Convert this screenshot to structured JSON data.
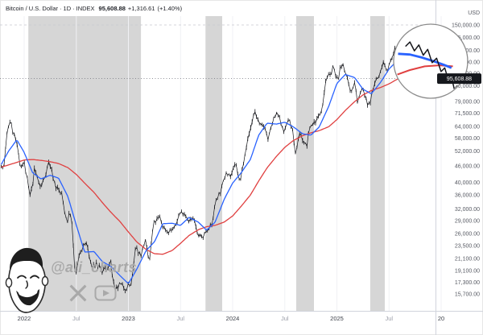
{
  "header": {
    "symbol": "Bitcoin / U.S. Dollar",
    "sep": "·",
    "interval": "1D",
    "exchange": "INDEX",
    "price": "95,608.88",
    "change": "+1,316.61",
    "change_pct": "(+1.40%)"
  },
  "axis": {
    "currency_label": "USD",
    "y_labels": [
      {
        "value": 150000,
        "label": "150,000.00"
      },
      {
        "value": 135000,
        "label": "135,000.00"
      },
      {
        "value": 121000,
        "label": "121,000.00"
      },
      {
        "value": 110000,
        "label": "110,000.00"
      },
      {
        "value": 100000,
        "label": "100,000.00"
      },
      {
        "value": 90000,
        "label": "90,000.00"
      },
      {
        "value": 79000,
        "label": "79,000.00"
      },
      {
        "value": 71500,
        "label": "71,500.00"
      },
      {
        "value": 64000,
        "label": "64,000.00"
      },
      {
        "value": 58000,
        "label": "58,000.00"
      },
      {
        "value": 52000,
        "label": "52,000.00"
      },
      {
        "value": 46000,
        "label": "46,000.00"
      },
      {
        "value": 40000,
        "label": "40,000.00"
      },
      {
        "value": 36000,
        "label": "36,000.00"
      },
      {
        "value": 32000,
        "label": "32,000.00"
      },
      {
        "value": 29000,
        "label": "29,000.00"
      },
      {
        "value": 26000,
        "label": "26,000.00"
      },
      {
        "value": 23500,
        "label": "23,500.00"
      },
      {
        "value": 21100,
        "label": "21,100.00"
      },
      {
        "value": 19100,
        "label": "19,100.00"
      },
      {
        "value": 17300,
        "label": "17,300.00"
      },
      {
        "value": 15700,
        "label": "15,700.00"
      }
    ],
    "x_labels": [
      {
        "t": 2022.0,
        "label": "2022",
        "major": true
      },
      {
        "t": 2022.5,
        "label": "Jul",
        "major": false
      },
      {
        "t": 2023.0,
        "label": "2023",
        "major": true
      },
      {
        "t": 2023.5,
        "label": "Jul",
        "major": false
      },
      {
        "t": 2024.0,
        "label": "2024",
        "major": true
      },
      {
        "t": 2024.5,
        "label": "Jul",
        "major": false
      },
      {
        "t": 2025.0,
        "label": "2025",
        "major": true
      },
      {
        "t": 2025.5,
        "label": "Jul",
        "major": false
      },
      {
        "t": 2026.0,
        "label": "20",
        "major": true
      }
    ]
  },
  "colors": {
    "ma_fast": "#2962ff",
    "ma_slow": "#e04040",
    "price": "#15161b",
    "band": "#9e9e9e",
    "axis_text": "#575a63",
    "axis_text_minor": "#9b9ea8",
    "axis_text_major": "#3f434c",
    "badge_bg": "#16181d",
    "badge_text": "#ffffff",
    "grid": "#f0f1f4",
    "watermark": "#a9a9a9"
  },
  "watermark": {
    "handle": "@ali_charts",
    "icons": [
      "cartoon-face",
      "x-logo",
      "youtube-logo"
    ]
  },
  "chart_data": {
    "type": "candlestick",
    "title": "Bitcoin / U.S. Dollar · 1D · INDEX",
    "ylabel": "USD",
    "y_scale": "log",
    "x_domain": [
      2021.78,
      2025.95
    ],
    "y_domain": [
      14000,
      156000
    ],
    "last_price": 95608.88,
    "legend": [
      {
        "name": "BTCUSD close",
        "color": "#15161b"
      },
      {
        "name": "fast moving average",
        "color": "#2962ff"
      },
      {
        "name": "slow moving average",
        "color": "#e04040"
      }
    ],
    "highlighted_periods": [
      [
        2022.04,
        2023.12
      ],
      [
        2023.74,
        2023.9
      ],
      [
        2024.61,
        2024.78
      ],
      [
        2025.32,
        2025.46
      ]
    ],
    "price": [
      [
        2021.78,
        47500
      ],
      [
        2021.8,
        43500
      ],
      [
        2021.84,
        62000
      ],
      [
        2021.86,
        67500
      ],
      [
        2021.92,
        57000
      ],
      [
        2021.96,
        46500
      ],
      [
        2022.0,
        47100
      ],
      [
        2022.06,
        35000
      ],
      [
        2022.1,
        44500
      ],
      [
        2022.16,
        38000
      ],
      [
        2022.24,
        47800
      ],
      [
        2022.3,
        39000
      ],
      [
        2022.36,
        36000
      ],
      [
        2022.41,
        28800
      ],
      [
        2022.45,
        31400
      ],
      [
        2022.49,
        17900
      ],
      [
        2022.54,
        22500
      ],
      [
        2022.6,
        24200
      ],
      [
        2022.64,
        19800
      ],
      [
        2022.7,
        20200
      ],
      [
        2022.74,
        18800
      ],
      [
        2022.79,
        19500
      ],
      [
        2022.83,
        20400
      ],
      [
        2022.87,
        15800
      ],
      [
        2022.91,
        16900
      ],
      [
        2022.97,
        16600
      ],
      [
        2023.03,
        17000
      ],
      [
        2023.07,
        23200
      ],
      [
        2023.12,
        21700
      ],
      [
        2023.16,
        24800
      ],
      [
        2023.2,
        20300
      ],
      [
        2023.24,
        28300
      ],
      [
        2023.3,
        29900
      ],
      [
        2023.33,
        27700
      ],
      [
        2023.38,
        26400
      ],
      [
        2023.44,
        27200
      ],
      [
        2023.49,
        30800
      ],
      [
        2023.53,
        31300
      ],
      [
        2023.58,
        29100
      ],
      [
        2023.63,
        29400
      ],
      [
        2023.66,
        25900
      ],
      [
        2023.71,
        25200
      ],
      [
        2023.76,
        27200
      ],
      [
        2023.8,
        27900
      ],
      [
        2023.84,
        34600
      ],
      [
        2023.89,
        37500
      ],
      [
        2023.94,
        44200
      ],
      [
        2023.98,
        42100
      ],
      [
        2024.03,
        46800
      ],
      [
        2024.07,
        39600
      ],
      [
        2024.12,
        52000
      ],
      [
        2024.17,
        62500
      ],
      [
        2024.21,
        73200
      ],
      [
        2024.26,
        64500
      ],
      [
        2024.31,
        63800
      ],
      [
        2024.34,
        57200
      ],
      [
        2024.39,
        67800
      ],
      [
        2024.43,
        71400
      ],
      [
        2024.47,
        65000
      ],
      [
        2024.5,
        61000
      ],
      [
        2024.53,
        68300
      ],
      [
        2024.57,
        64000
      ],
      [
        2024.6,
        49800
      ],
      [
        2024.64,
        61000
      ],
      [
        2024.67,
        57500
      ],
      [
        2024.71,
        53900
      ],
      [
        2024.74,
        63700
      ],
      [
        2024.79,
        66700
      ],
      [
        2024.82,
        68200
      ],
      [
        2024.86,
        76500
      ],
      [
        2024.9,
        98500
      ],
      [
        2024.93,
        95700
      ],
      [
        2024.96,
        106800
      ],
      [
        2025.0,
        93500
      ],
      [
        2025.03,
        102200
      ],
      [
        2025.06,
        109100
      ],
      [
        2025.09,
        97500
      ],
      [
        2025.13,
        84300
      ],
      [
        2025.17,
        94000
      ],
      [
        2025.2,
        78000
      ],
      [
        2025.24,
        88000
      ],
      [
        2025.27,
        82500
      ],
      [
        2025.3,
        74800
      ],
      [
        2025.34,
        85000
      ],
      [
        2025.37,
        94500
      ],
      [
        2025.41,
        97000
      ],
      [
        2025.44,
        111800
      ],
      [
        2025.48,
        103300
      ],
      [
        2025.52,
        110000
      ],
      [
        2025.55,
        122700
      ],
      [
        2025.58,
        115500
      ],
      [
        2025.62,
        124300
      ],
      [
        2025.66,
        112000
      ],
      [
        2025.69,
        108500
      ],
      [
        2025.73,
        117000
      ],
      [
        2025.76,
        126100
      ],
      [
        2025.79,
        107500
      ],
      [
        2025.82,
        113800
      ],
      [
        2025.85,
        104000
      ],
      [
        2025.875,
        96500
      ],
      [
        2025.895,
        79500
      ],
      [
        2025.915,
        92000
      ],
      [
        2025.93,
        95608.88
      ]
    ],
    "ma_fast": [
      [
        2021.78,
        46500
      ],
      [
        2021.85,
        52000
      ],
      [
        2021.93,
        57200
      ],
      [
        2022.0,
        51500
      ],
      [
        2022.08,
        43500
      ],
      [
        2022.16,
        41200
      ],
      [
        2022.25,
        42500
      ],
      [
        2022.33,
        41500
      ],
      [
        2022.42,
        35500
      ],
      [
        2022.5,
        28000
      ],
      [
        2022.58,
        22300
      ],
      [
        2022.67,
        22400
      ],
      [
        2022.75,
        20600
      ],
      [
        2022.83,
        19800
      ],
      [
        2022.92,
        18300
      ],
      [
        2023.0,
        17100
      ],
      [
        2023.08,
        19300
      ],
      [
        2023.17,
        22600
      ],
      [
        2023.25,
        24300
      ],
      [
        2023.33,
        28300
      ],
      [
        2023.42,
        28400
      ],
      [
        2023.5,
        27900
      ],
      [
        2023.58,
        29800
      ],
      [
        2023.67,
        28700
      ],
      [
        2023.75,
        26800
      ],
      [
        2023.83,
        28600
      ],
      [
        2023.92,
        34800
      ],
      [
        2024.0,
        39800
      ],
      [
        2024.08,
        43300
      ],
      [
        2024.17,
        48500
      ],
      [
        2024.25,
        59500
      ],
      [
        2024.33,
        65800
      ],
      [
        2024.42,
        65300
      ],
      [
        2024.5,
        66300
      ],
      [
        2024.58,
        63900
      ],
      [
        2024.67,
        60200
      ],
      [
        2024.75,
        59500
      ],
      [
        2024.83,
        63700
      ],
      [
        2024.92,
        75500
      ],
      [
        2025.0,
        91800
      ],
      [
        2025.08,
        99000
      ],
      [
        2025.17,
        96500
      ],
      [
        2025.25,
        87500
      ],
      [
        2025.33,
        84200
      ],
      [
        2025.42,
        92800
      ],
      [
        2025.5,
        103600
      ],
      [
        2025.58,
        111500
      ],
      [
        2025.67,
        115500
      ],
      [
        2025.75,
        113000
      ],
      [
        2025.83,
        113500
      ],
      [
        2025.9,
        110500
      ],
      [
        2025.95,
        106500
      ]
    ],
    "ma_slow": [
      [
        2021.78,
        45500
      ],
      [
        2021.92,
        47200
      ],
      [
        2022.0,
        48300
      ],
      [
        2022.08,
        48500
      ],
      [
        2022.17,
        48100
      ],
      [
        2022.25,
        47600
      ],
      [
        2022.33,
        46900
      ],
      [
        2022.42,
        45300
      ],
      [
        2022.5,
        42800
      ],
      [
        2022.58,
        39800
      ],
      [
        2022.67,
        36800
      ],
      [
        2022.75,
        33800
      ],
      [
        2022.83,
        31200
      ],
      [
        2022.92,
        28800
      ],
      [
        2023.0,
        26400
      ],
      [
        2023.08,
        24300
      ],
      [
        2023.17,
        22800
      ],
      [
        2023.25,
        22000
      ],
      [
        2023.33,
        21900
      ],
      [
        2023.42,
        22600
      ],
      [
        2023.5,
        24000
      ],
      [
        2023.58,
        25600
      ],
      [
        2023.67,
        26900
      ],
      [
        2023.75,
        27600
      ],
      [
        2023.83,
        27900
      ],
      [
        2023.92,
        28700
      ],
      [
        2024.0,
        30200
      ],
      [
        2024.08,
        32700
      ],
      [
        2024.17,
        36000
      ],
      [
        2024.25,
        40500
      ],
      [
        2024.33,
        45200
      ],
      [
        2024.42,
        49800
      ],
      [
        2024.5,
        53700
      ],
      [
        2024.58,
        56800
      ],
      [
        2024.67,
        59200
      ],
      [
        2024.75,
        60700
      ],
      [
        2024.83,
        61800
      ],
      [
        2024.92,
        63800
      ],
      [
        2025.0,
        67800
      ],
      [
        2025.08,
        73200
      ],
      [
        2025.17,
        78800
      ],
      [
        2025.25,
        83400
      ],
      [
        2025.33,
        86500
      ],
      [
        2025.42,
        88800
      ],
      [
        2025.5,
        91500
      ],
      [
        2025.58,
        95200
      ],
      [
        2025.67,
        99400
      ],
      [
        2025.75,
        103200
      ],
      [
        2025.83,
        106400
      ],
      [
        2025.9,
        108400
      ],
      [
        2025.95,
        109200
      ]
    ]
  },
  "magnifier": {
    "ma_fast": [
      [
        0.06,
        0.4
      ],
      [
        0.22,
        0.41
      ],
      [
        0.38,
        0.45
      ],
      [
        0.54,
        0.5
      ],
      [
        0.68,
        0.55
      ],
      [
        0.78,
        0.59
      ]
    ],
    "ma_slow": [
      [
        0.05,
        0.68
      ],
      [
        0.22,
        0.62
      ],
      [
        0.42,
        0.57
      ],
      [
        0.62,
        0.555
      ],
      [
        0.8,
        0.57
      ]
    ],
    "price": [
      [
        0.16,
        0.3
      ],
      [
        0.22,
        0.24
      ],
      [
        0.28,
        0.36
      ],
      [
        0.34,
        0.28
      ],
      [
        0.4,
        0.42
      ],
      [
        0.46,
        0.34
      ],
      [
        0.52,
        0.52
      ],
      [
        0.58,
        0.46
      ],
      [
        0.64,
        0.64
      ],
      [
        0.69,
        0.59
      ],
      [
        0.74,
        0.76
      ],
      [
        0.78,
        0.71
      ],
      [
        0.82,
        0.88
      ],
      [
        0.86,
        0.83
      ],
      [
        0.89,
        0.9
      ]
    ]
  }
}
